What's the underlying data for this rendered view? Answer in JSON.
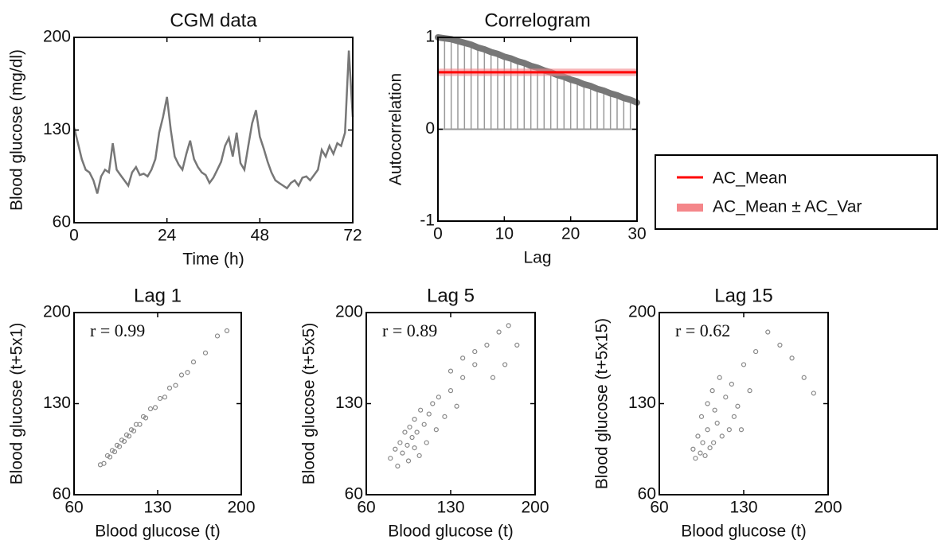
{
  "chart_data": [
    {
      "type": "line",
      "title": "CGM data",
      "xlabel": "Time (h)",
      "ylabel": "Blood glucose (mg/dl)",
      "x": [
        0,
        1,
        2,
        3,
        4,
        5,
        6,
        7,
        8,
        9,
        10,
        11,
        12,
        13,
        14,
        15,
        16,
        17,
        18,
        19,
        20,
        21,
        22,
        23,
        24,
        25,
        26,
        27,
        28,
        29,
        30,
        31,
        32,
        33,
        34,
        35,
        36,
        37,
        38,
        39,
        40,
        41,
        42,
        43,
        44,
        45,
        46,
        47,
        48,
        49,
        50,
        51,
        52,
        53,
        54,
        55,
        56,
        57,
        58,
        59,
        60,
        61,
        62,
        63,
        64,
        65,
        66,
        67,
        68,
        69,
        70,
        71,
        72
      ],
      "values": [
        132,
        120,
        108,
        100,
        98,
        92,
        82,
        95,
        100,
        98,
        120,
        100,
        96,
        92,
        88,
        98,
        102,
        96,
        97,
        95,
        100,
        108,
        128,
        140,
        155,
        130,
        110,
        104,
        100,
        112,
        122,
        108,
        102,
        98,
        96,
        90,
        94,
        100,
        106,
        118,
        124,
        110,
        128,
        105,
        100,
        118,
        135,
        145,
        125,
        116,
        106,
        98,
        92,
        90,
        88,
        86,
        90,
        92,
        88,
        94,
        95,
        92,
        96,
        100,
        115,
        110,
        118,
        112,
        120,
        118,
        128,
        190,
        140
      ],
      "color": "#777777",
      "xlim": [
        0,
        72
      ],
      "ylim": [
        60,
        200
      ],
      "xticks": [
        0,
        24,
        48,
        72
      ],
      "yticks": [
        60,
        130,
        200
      ]
    },
    {
      "type": "stem",
      "title": "Correlogram",
      "xlabel": "Lag",
      "ylabel": "Autocorrelation",
      "x": [
        0,
        1,
        2,
        3,
        4,
        5,
        6,
        7,
        8,
        9,
        10,
        11,
        12,
        13,
        14,
        15,
        16,
        17,
        18,
        19,
        20,
        21,
        22,
        23,
        24,
        25,
        26,
        27,
        28,
        29,
        30
      ],
      "values": [
        1.0,
        0.99,
        0.98,
        0.96,
        0.94,
        0.92,
        0.89,
        0.87,
        0.84,
        0.82,
        0.79,
        0.77,
        0.74,
        0.72,
        0.69,
        0.67,
        0.64,
        0.62,
        0.59,
        0.57,
        0.54,
        0.52,
        0.49,
        0.47,
        0.44,
        0.42,
        0.39,
        0.37,
        0.34,
        0.32,
        0.29
      ],
      "color": "#777777",
      "xlim": [
        0,
        30
      ],
      "ylim": [
        -1,
        1
      ],
      "xticks": [
        0,
        10,
        20,
        30
      ],
      "yticks": [
        -1,
        0,
        1
      ],
      "mean_line": {
        "name": "AC_Mean",
        "color": "#ff0000",
        "value": 0.62
      },
      "var_band": {
        "name": "AC_Mean ± AC_Var",
        "color": "#f4868a",
        "values": [
          0.58,
          0.66
        ]
      },
      "legend": "right"
    },
    {
      "type": "scatter",
      "title": "Lag 1",
      "annotation": "r = 0.99",
      "xlabel": "Blood glucose (t)",
      "ylabel": "Blood glucose (t+5x1)",
      "x": [
        82,
        85,
        88,
        90,
        92,
        94,
        96,
        98,
        100,
        102,
        104,
        106,
        108,
        110,
        112,
        115,
        118,
        120,
        124,
        128,
        132,
        136,
        140,
        145,
        150,
        155,
        160,
        170,
        180,
        188
      ],
      "values": [
        83,
        84,
        90,
        89,
        94,
        93,
        98,
        97,
        102,
        101,
        106,
        105,
        110,
        109,
        114,
        114,
        120,
        119,
        126,
        127,
        134,
        135,
        142,
        144,
        152,
        154,
        162,
        169,
        182,
        186
      ],
      "color": "#888888",
      "xlim": [
        60,
        200
      ],
      "ylim": [
        60,
        200
      ],
      "xticks": [
        60,
        130,
        200
      ],
      "yticks": [
        60,
        130,
        200
      ]
    },
    {
      "type": "scatter",
      "title": "Lag 5",
      "annotation": "r = 0.89",
      "xlabel": "Blood glucose (t)",
      "ylabel": "Blood glucose (t+5x5)",
      "x": [
        80,
        84,
        86,
        88,
        90,
        92,
        94,
        95,
        96,
        98,
        100,
        100,
        102,
        104,
        105,
        108,
        110,
        112,
        115,
        118,
        120,
        125,
        130,
        135,
        140,
        150,
        160,
        170,
        178,
        185,
        175,
        165,
        150,
        140,
        130
      ],
      "values": [
        88,
        95,
        82,
        100,
        92,
        108,
        98,
        86,
        112,
        104,
        96,
        118,
        108,
        90,
        125,
        114,
        100,
        122,
        130,
        110,
        135,
        120,
        140,
        128,
        150,
        160,
        175,
        185,
        190,
        175,
        160,
        150,
        170,
        165,
        155
      ],
      "color": "#888888",
      "xlim": [
        60,
        200
      ],
      "ylim": [
        60,
        200
      ],
      "xticks": [
        60,
        130,
        200
      ],
      "yticks": [
        60,
        130,
        200
      ]
    },
    {
      "type": "scatter",
      "title": "Lag 15",
      "annotation": "r = 0.62",
      "xlabel": "Blood glucose (t)",
      "ylabel": "Blood glucose (t+5x15)",
      "x": [
        88,
        90,
        92,
        94,
        95,
        96,
        98,
        100,
        100,
        102,
        104,
        105,
        106,
        108,
        110,
        112,
        115,
        118,
        120,
        122,
        125,
        128,
        130,
        135,
        140,
        150,
        160,
        170,
        180,
        188
      ],
      "values": [
        95,
        88,
        105,
        92,
        120,
        100,
        90,
        130,
        110,
        96,
        140,
        100,
        125,
        115,
        150,
        105,
        135,
        110,
        145,
        120,
        128,
        110,
        160,
        140,
        170,
        185,
        175,
        165,
        150,
        138
      ],
      "color": "#888888",
      "xlim": [
        60,
        200
      ],
      "ylim": [
        60,
        200
      ],
      "xticks": [
        60,
        130,
        200
      ],
      "yticks": [
        60,
        130,
        200
      ]
    }
  ]
}
